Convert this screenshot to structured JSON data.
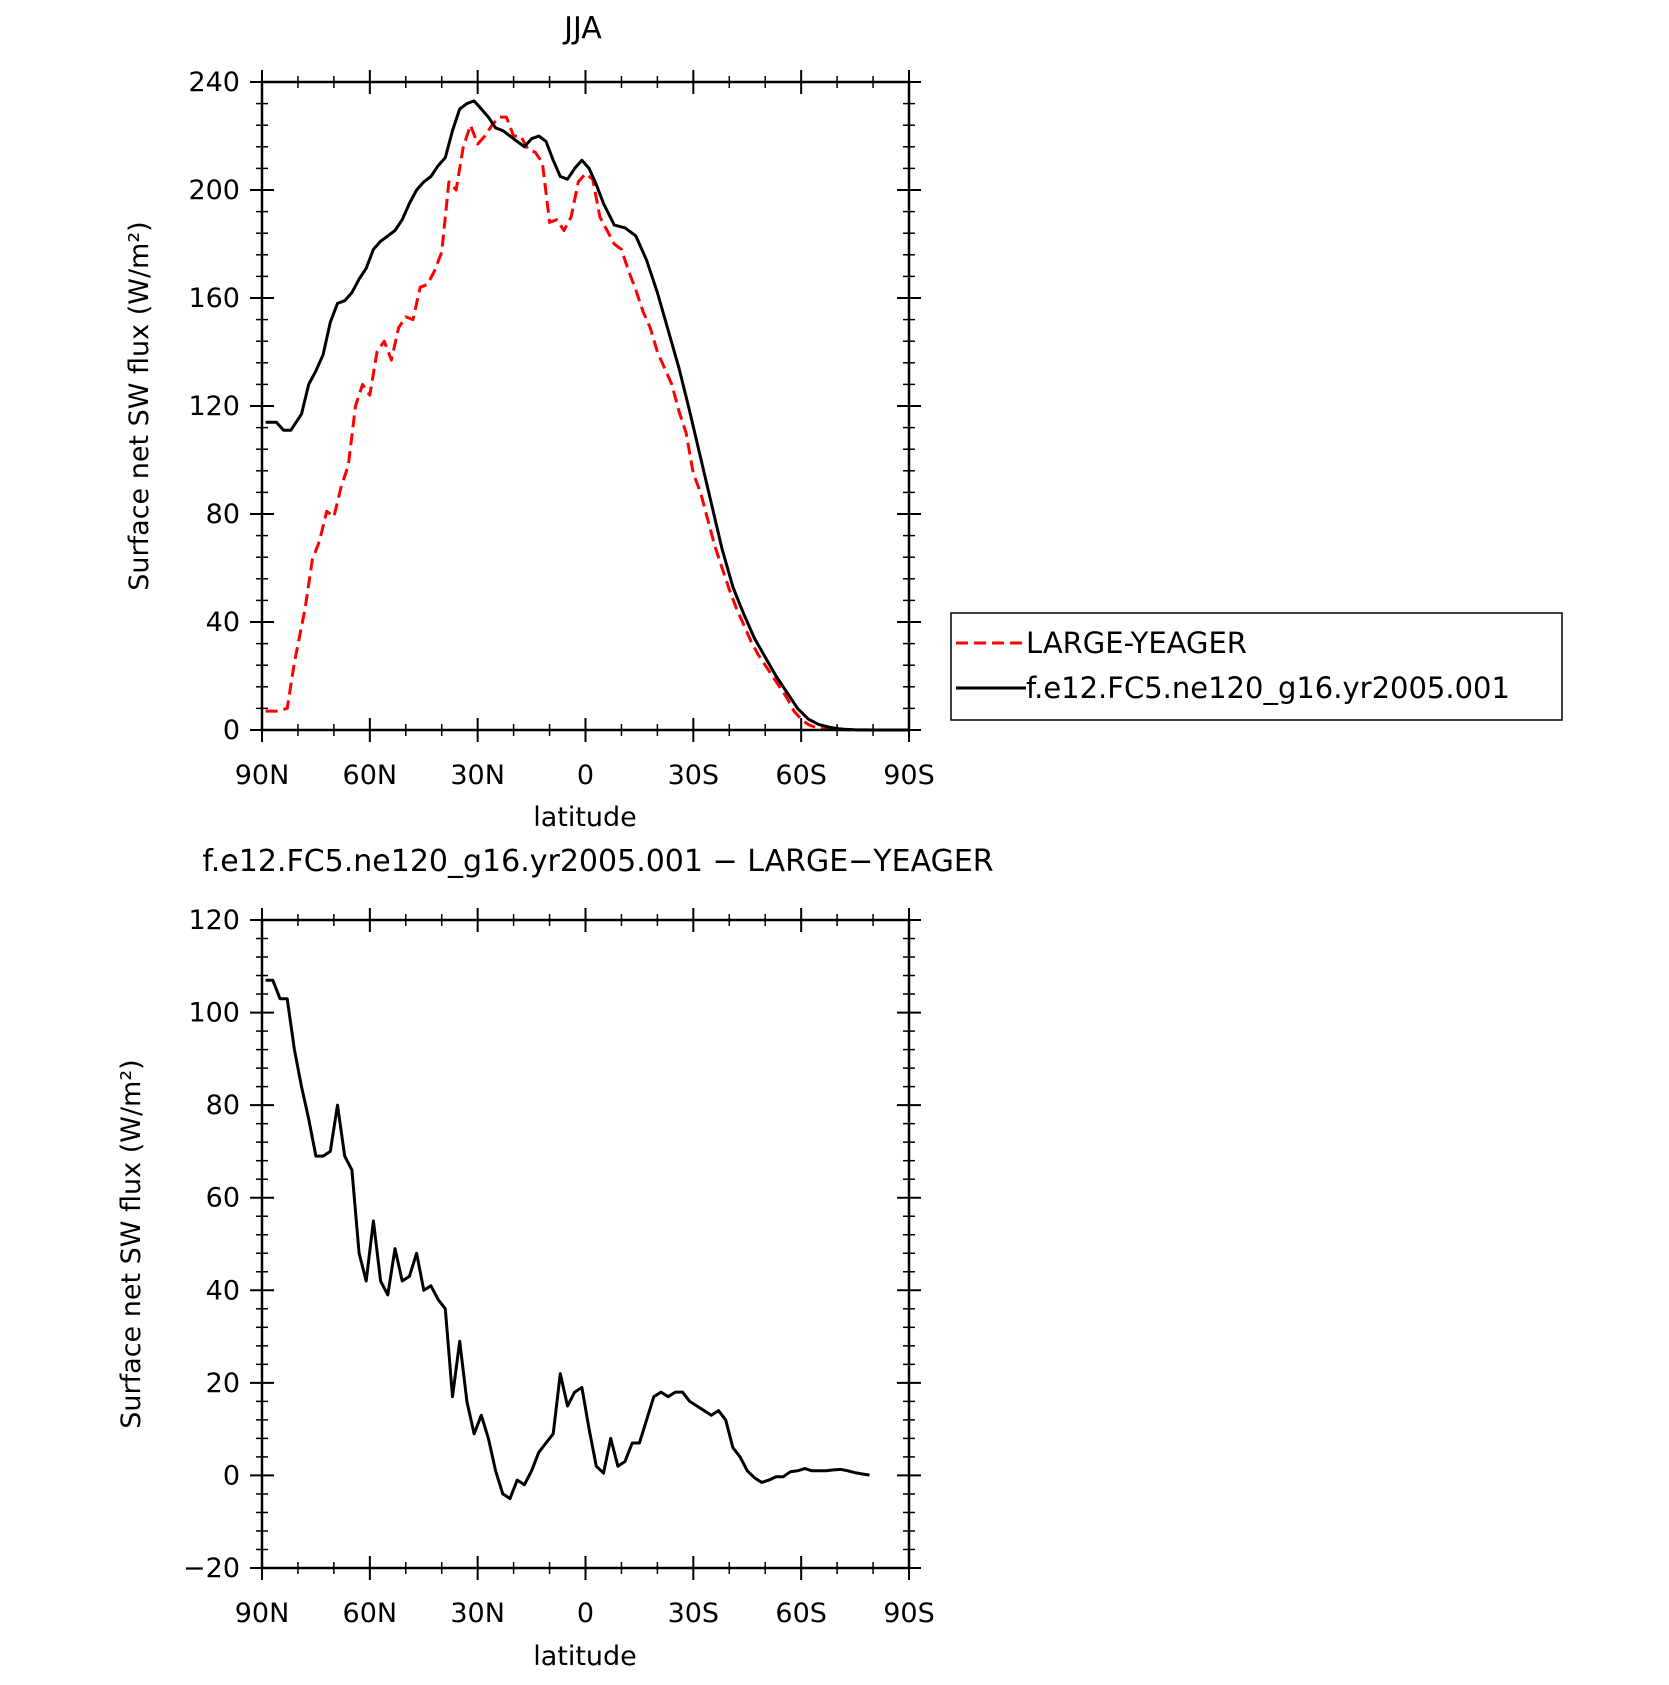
{
  "chart_data": [
    {
      "type": "line",
      "title": "JJA",
      "xlabel": "latitude",
      "ylabel": "Surface net SW flux (W/m²)",
      "xlim": [
        90,
        -90
      ],
      "ylim": [
        0,
        240
      ],
      "xticks": [
        90,
        60,
        30,
        0,
        -30,
        -60,
        -90
      ],
      "xtick_labels": [
        "90N",
        "60N",
        "30N",
        "0",
        "30S",
        "60S",
        "90S"
      ],
      "yticks": [
        0,
        40,
        80,
        120,
        160,
        200,
        240
      ],
      "ytick_labels": [
        "0",
        "40",
        "80",
        "120",
        "160",
        "200",
        "240"
      ],
      "grid": false,
      "legend_position": "right",
      "series": [
        {
          "name": "LARGE-YEAGER",
          "color": "#ff0000",
          "dash": "dashed",
          "x": [
            89,
            86,
            83,
            81,
            78,
            76,
            74,
            72,
            70,
            68,
            66,
            64,
            62,
            60,
            58,
            56,
            54,
            52,
            50,
            48,
            46,
            44,
            42,
            40,
            38,
            36,
            34,
            32,
            30,
            28,
            26,
            24,
            22,
            20,
            18,
            16,
            14,
            12,
            10,
            8,
            6,
            4,
            2,
            0,
            -2,
            -4,
            -6,
            -8,
            -10,
            -12,
            -14,
            -16,
            -18,
            -20,
            -22,
            -24,
            -26,
            -28,
            -30,
            -32,
            -34,
            -36,
            -38,
            -40,
            -42,
            -44,
            -46,
            -48,
            -50,
            -52,
            -54,
            -56,
            -58,
            -60,
            -62,
            -64,
            -66,
            -68,
            -70,
            -72,
            -75,
            -80,
            -85,
            -90
          ],
          "y": [
            7,
            7,
            8,
            25,
            45,
            63,
            70,
            81,
            79,
            90,
            98,
            120,
            128,
            124,
            140,
            144,
            137,
            149,
            153,
            152,
            164,
            165,
            170,
            177,
            203,
            200,
            216,
            224,
            217,
            220,
            224,
            227,
            227,
            220,
            220,
            215,
            214,
            210,
            188,
            189,
            185,
            190,
            203,
            206,
            204,
            190,
            185,
            180,
            178,
            170,
            163,
            155,
            149,
            140,
            134,
            128,
            118,
            110,
            95,
            88,
            78,
            68,
            60,
            52,
            45,
            39,
            33,
            28,
            24,
            20,
            16,
            12,
            7,
            4,
            2,
            1,
            0.5,
            0.3,
            0.2,
            0.1,
            0,
            0,
            0,
            0
          ]
        },
        {
          "name": "f.e12.FC5.ne120_g16.yr2005.001",
          "color": "#000000",
          "dash": "solid",
          "x": [
            89,
            86,
            84,
            82,
            79,
            77,
            75,
            73,
            71,
            69,
            67,
            65,
            63,
            61,
            59,
            57,
            55,
            53,
            51,
            49,
            47,
            45,
            43,
            41,
            39,
            37,
            35,
            33,
            31,
            29,
            27,
            25,
            23,
            21,
            19,
            17,
            15,
            13,
            11,
            9,
            7,
            5,
            3,
            1,
            -1,
            -3,
            -5,
            -8,
            -11,
            -14,
            -17,
            -20,
            -23,
            -26,
            -29,
            -32,
            -35,
            -38,
            -41,
            -44,
            -47,
            -50,
            -53,
            -56,
            -59,
            -62,
            -65,
            -68,
            -70,
            -72,
            -75,
            -80,
            -85,
            -90
          ],
          "y": [
            114,
            114,
            111,
            111,
            117,
            128,
            133,
            139,
            151,
            158,
            159,
            162,
            167,
            171,
            178,
            181,
            183,
            185,
            189,
            195,
            200,
            203,
            205,
            209,
            212,
            222,
            230,
            232,
            233,
            230,
            227,
            223,
            222,
            220,
            218,
            216,
            219,
            220,
            218,
            211,
            205,
            204,
            208,
            211,
            208,
            202,
            195,
            187,
            186,
            183,
            174,
            162,
            148,
            134,
            118,
            101,
            84,
            67,
            53,
            43,
            34,
            27,
            20,
            14,
            8,
            4,
            2,
            1,
            0.5,
            0.3,
            0.1,
            0,
            0,
            0
          ]
        }
      ]
    },
    {
      "type": "line",
      "title": "f.e12.FC5.ne120_g16.yr2005.001 − LARGE−YEAGER",
      "xlabel": "latitude",
      "ylabel": "Surface net SW flux (W/m²)",
      "xlim": [
        90,
        -90
      ],
      "ylim": [
        -20,
        120
      ],
      "xticks": [
        90,
        60,
        30,
        0,
        -30,
        -60,
        -90
      ],
      "xtick_labels": [
        "90N",
        "60N",
        "30N",
        "0",
        "30S",
        "60S",
        "90S"
      ],
      "yticks": [
        -20,
        0,
        20,
        40,
        60,
        80,
        100,
        120
      ],
      "ytick_labels": [
        "−20",
        "0",
        "20",
        "40",
        "60",
        "80",
        "100",
        "120"
      ],
      "grid": false,
      "series": [
        {
          "color": "#000000",
          "dash": "solid",
          "x": [
            89,
            87,
            85,
            83,
            81,
            79,
            77,
            75,
            73,
            71,
            69,
            67,
            65,
            63,
            61,
            59,
            57,
            55,
            53,
            51,
            49,
            47,
            45,
            43,
            41,
            39,
            37,
            35,
            33,
            31,
            29,
            27,
            25,
            23,
            21,
            19,
            17,
            15,
            13,
            11,
            9,
            7,
            5,
            3,
            1,
            -1,
            -3,
            -5,
            -7,
            -9,
            -11,
            -13,
            -15,
            -17,
            -19,
            -21,
            -23,
            -25,
            -27,
            -29,
            -31,
            -33,
            -35,
            -37,
            -39,
            -41,
            -43,
            -45,
            -47,
            -49,
            -51,
            -53,
            -55,
            -57,
            -59,
            -61,
            -63,
            -65,
            -67,
            -69,
            -71,
            -73,
            -75,
            -77,
            -79
          ],
          "y": [
            107,
            107,
            103,
            103,
            92,
            84,
            77,
            69,
            69,
            70,
            80,
            69,
            66,
            48,
            42,
            55,
            42,
            39,
            49,
            42,
            43,
            48,
            40,
            41,
            38,
            36,
            17,
            29,
            16,
            9,
            13,
            8,
            1,
            -4,
            -5,
            -1,
            -2,
            1,
            5,
            7,
            9,
            22,
            15,
            18,
            19,
            10,
            2,
            0.5,
            8,
            2,
            3,
            7,
            7,
            12,
            17,
            18,
            17,
            18,
            18,
            16,
            15,
            14,
            13,
            14,
            12,
            6,
            4,
            1,
            -0.5,
            -1.5,
            -1,
            -0.3,
            -0.3,
            0.8,
            1,
            1.5,
            1,
            1,
            1,
            1.2,
            1.3,
            1,
            0.6,
            0.3,
            0.1
          ]
        }
      ]
    }
  ]
}
